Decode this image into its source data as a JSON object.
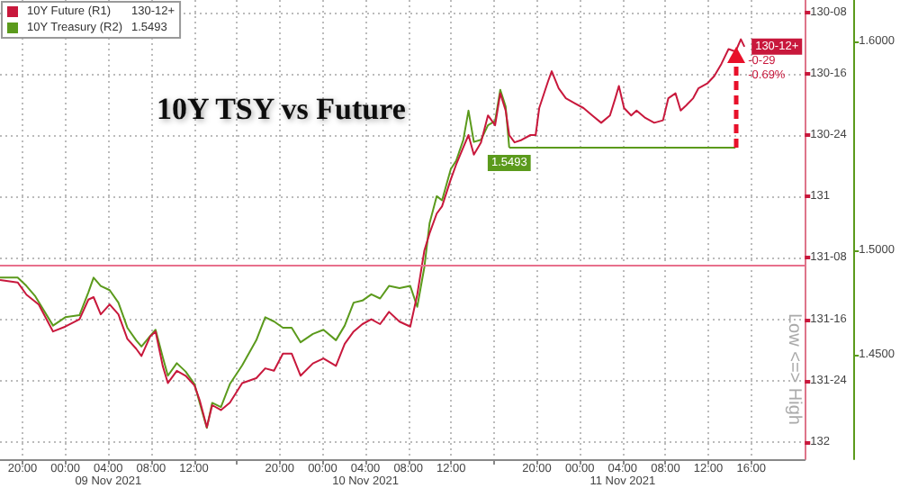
{
  "chart_data": {
    "type": "line",
    "title": "10Y TSY vs Future",
    "xlim": [
      "2021-11-08T17:54",
      "2021-11-11T21:00"
    ],
    "xticks": [
      {
        "value": "2021-11-08T20:00",
        "label": "20:00"
      },
      {
        "value": "2021-11-09T00:00",
        "label": "00:00"
      },
      {
        "value": "2021-11-09T04:00",
        "label": "04:00\n09 Nov 2021"
      },
      {
        "value": "2021-11-09T08:00",
        "label": "08:00"
      },
      {
        "value": "2021-11-09T12:00",
        "label": "12:00"
      },
      {
        "value": "2021-11-09T16:00",
        "label": null
      },
      {
        "value": "2021-11-09T20:00",
        "label": "20:00"
      },
      {
        "value": "2021-11-10T00:00",
        "label": "00:00"
      },
      {
        "value": "2021-11-10T04:00",
        "label": "04:00\n10 Nov 2021"
      },
      {
        "value": "2021-11-10T08:00",
        "label": "08:00"
      },
      {
        "value": "2021-11-10T12:00",
        "label": "12:00"
      },
      {
        "value": "2021-11-10T16:00",
        "label": null
      },
      {
        "value": "2021-11-10T20:00",
        "label": "20:00"
      },
      {
        "value": "2021-11-11T00:00",
        "label": "00:00"
      },
      {
        "value": "2021-11-11T04:00",
        "label": "04:00\n11 Nov 2021"
      },
      {
        "value": "2021-11-11T08:00",
        "label": "08:00"
      },
      {
        "value": "2021-11-11T12:00",
        "label": "12:00"
      },
      {
        "value": "2021-11-11T16:00",
        "label": "16:00"
      }
    ],
    "ylim": [
      132.07,
      130.2
    ],
    "yticks": [
      {
        "value": 130.25,
        "label": "130-08"
      },
      {
        "value": 130.5,
        "label": "130-16"
      },
      {
        "value": 130.75,
        "label": "130-24"
      },
      {
        "value": 131,
        "label": "131"
      },
      {
        "value": 131.25,
        "label": "131-08"
      },
      {
        "value": 131.5,
        "label": "131-16"
      },
      {
        "value": 131.75,
        "label": "131-24"
      },
      {
        "value": 132,
        "label": "132"
      }
    ],
    "y2lim": [
      1.4,
      1.62
    ],
    "y2ticks": [
      {
        "value": 1.45,
        "label": "1.4500"
      },
      {
        "value": 1.5,
        "label": "1.5000"
      },
      {
        "value": 1.6,
        "label": "1.6000"
      }
    ],
    "grid": true,
    "legend": "top left",
    "marker": "none",
    "series": [
      {
        "name": "10Y Future (R1)",
        "color": "#c8183c",
        "x": [
          "2021-11-08T17:54",
          "2021-11-08T19:33",
          "2021-11-08T20:22",
          "2021-11-08T21:31",
          "2021-11-08T22:51",
          "2021-11-09T00:00",
          "2021-11-09T01:19",
          "2021-11-09T02:09",
          "2021-11-09T02:38",
          "2021-11-09T03:18",
          "2021-11-09T04:08",
          "2021-11-09T04:57",
          "2021-11-09T05:47",
          "2021-11-09T06:36",
          "2021-11-09T07:06",
          "2021-11-09T07:55",
          "2021-11-09T08:25",
          "2021-11-09T09:05",
          "2021-11-09T09:34",
          "2021-11-09T10:24",
          "2021-11-09T11:13",
          "2021-11-09T12:03",
          "2021-11-09T12:32",
          "2021-11-09T13:12",
          "2021-11-09T13:42",
          "2021-11-09T14:31",
          "2021-11-09T15:21",
          "2021-11-09T16:30",
          "2021-11-09T17:49",
          "2021-11-09T18:39",
          "2021-11-09T19:28",
          "2021-11-09T20:18",
          "2021-11-09T21:07",
          "2021-11-09T21:57",
          "2021-11-09T23:06",
          "2021-11-10T00:05",
          "2021-11-10T01:15",
          "2021-11-10T02:04",
          "2021-11-10T02:54",
          "2021-11-10T03:43",
          "2021-11-10T04:33",
          "2021-11-10T05:22",
          "2021-11-10T06:12",
          "2021-11-10T07:11",
          "2021-11-10T08:11",
          "2021-11-10T08:50",
          "2021-11-10T09:30",
          "2021-11-10T09:59",
          "2021-11-10T10:39",
          "2021-11-10T11:09",
          "2021-11-10T11:58",
          "2021-11-10T12:28",
          "2021-11-10T13:08",
          "2021-11-10T13:37",
          "2021-11-10T14:07",
          "2021-11-10T14:47",
          "2021-11-10T15:26",
          "2021-11-10T16:06",
          "2021-11-10T16:35",
          "2021-11-10T17:05",
          "2021-11-10T17:25",
          "2021-11-10T17:55",
          "2021-11-10T18:34",
          "2021-11-10T19:24",
          "2021-11-10T19:53",
          "2021-11-10T20:13",
          "2021-11-10T21:03",
          "2021-11-10T21:23",
          "2021-11-10T22:02",
          "2021-11-10T22:42",
          "2021-11-10T23:31",
          "2021-11-11T00:21",
          "2021-11-11T01:10",
          "2021-11-11T02:00",
          "2021-11-11T02:49",
          "2021-11-11T03:19",
          "2021-11-11T03:39",
          "2021-11-11T04:08",
          "2021-11-11T04:48",
          "2021-11-11T05:18",
          "2021-11-11T06:07",
          "2021-11-11T06:57",
          "2021-11-11T07:46",
          "2021-11-11T08:16",
          "2021-11-11T08:56",
          "2021-11-11T09:25",
          "2021-11-11T09:55",
          "2021-11-11T10:35",
          "2021-11-11T11:04",
          "2021-11-11T11:54",
          "2021-11-11T12:33",
          "2021-11-11T13:13",
          "2021-11-11T13:53",
          "2021-11-11T14:32",
          "2021-11-11T15:02",
          "2021-11-11T15:22"
        ],
        "values": [
          131.34,
          131.35,
          131.4,
          131.44,
          131.55,
          131.53,
          131.5,
          131.42,
          131.41,
          131.48,
          131.44,
          131.48,
          131.58,
          131.62,
          131.65,
          131.57,
          131.55,
          131.69,
          131.76,
          131.71,
          131.73,
          131.77,
          131.83,
          131.94,
          131.85,
          131.87,
          131.84,
          131.76,
          131.74,
          131.7,
          131.71,
          131.64,
          131.64,
          131.73,
          131.68,
          131.66,
          131.69,
          131.6,
          131.55,
          131.52,
          131.5,
          131.52,
          131.47,
          131.51,
          131.53,
          131.4,
          131.22,
          131.15,
          131.07,
          131.04,
          130.93,
          130.87,
          130.8,
          130.75,
          130.83,
          130.78,
          130.67,
          130.71,
          130.58,
          130.65,
          130.75,
          130.78,
          130.77,
          130.75,
          130.75,
          130.64,
          130.53,
          130.49,
          130.56,
          130.6,
          130.62,
          130.64,
          130.67,
          130.7,
          130.67,
          130.6,
          130.55,
          130.64,
          130.67,
          130.65,
          130.68,
          130.7,
          130.69,
          130.6,
          130.58,
          130.65,
          130.63,
          130.6,
          130.56,
          130.54,
          130.51,
          130.46,
          130.4,
          130.41,
          130.36,
          130.39
        ],
        "value_labels": [
          null,
          null,
          null,
          null,
          null,
          null,
          null,
          null,
          null,
          null,
          null,
          null,
          null,
          null,
          null,
          null,
          null,
          null,
          null,
          null,
          null,
          null,
          null,
          null,
          null,
          null,
          null,
          null,
          null,
          null,
          null,
          null,
          null,
          null,
          null,
          null,
          null,
          null,
          null,
          null,
          null,
          null,
          null,
          null,
          null,
          null,
          null,
          null,
          null,
          null,
          null,
          null,
          null,
          null,
          null,
          null,
          null,
          null,
          null,
          null,
          null,
          null,
          null,
          null,
          null,
          null,
          null,
          null,
          null,
          null,
          null,
          null,
          null,
          null,
          null,
          null,
          null,
          null,
          null,
          null,
          null,
          null,
          null,
          null,
          null,
          null,
          null,
          null,
          null,
          null,
          null,
          null,
          null,
          null,
          null,
          "130-12+"
        ]
      },
      {
        "name": "10Y Treasury (R2)",
        "axis": "y2",
        "color": "#5b9a1c",
        "x": [
          "2021-11-08T17:54",
          "2021-11-08T19:33",
          "2021-11-08T20:22",
          "2021-11-08T21:12",
          "2021-11-08T22:51",
          "2021-11-09T00:00",
          "2021-11-09T01:19",
          "2021-11-09T02:09",
          "2021-11-09T02:38",
          "2021-11-09T03:18",
          "2021-11-09T04:08",
          "2021-11-09T04:57",
          "2021-11-09T05:47",
          "2021-11-09T06:36",
          "2021-11-09T07:06",
          "2021-11-09T07:55",
          "2021-11-09T08:25",
          "2021-11-09T09:05",
          "2021-11-09T09:34",
          "2021-11-09T10:24",
          "2021-11-09T11:13",
          "2021-11-09T12:03",
          "2021-11-09T12:32",
          "2021-11-09T13:12",
          "2021-11-09T13:42",
          "2021-11-09T14:31",
          "2021-11-09T15:21",
          "2021-11-09T16:30",
          "2021-11-09T17:49",
          "2021-11-09T18:39",
          "2021-11-09T19:28",
          "2021-11-09T20:18",
          "2021-11-09T21:07",
          "2021-11-09T21:57",
          "2021-11-09T23:06",
          "2021-11-10T00:05",
          "2021-11-10T01:15",
          "2021-11-10T02:04",
          "2021-11-10T02:54",
          "2021-11-10T03:43",
          "2021-11-10T04:33",
          "2021-11-10T05:22",
          "2021-11-10T06:12",
          "2021-11-10T07:11",
          "2021-11-10T08:11",
          "2021-11-10T08:50",
          "2021-11-10T09:30",
          "2021-11-10T09:59",
          "2021-11-10T10:39",
          "2021-11-10T11:09",
          "2021-11-10T11:58",
          "2021-11-10T12:28",
          "2021-11-10T13:08",
          "2021-11-10T13:37",
          "2021-11-10T14:07",
          "2021-11-10T14:47",
          "2021-11-10T15:26",
          "2021-11-10T16:06",
          "2021-11-10T16:35",
          "2021-11-10T17:05",
          "2021-11-10T17:25"
        ],
        "values": [
          1.487,
          1.487,
          1.483,
          1.478,
          1.464,
          1.468,
          1.469,
          1.48,
          1.487,
          1.483,
          1.481,
          1.475,
          1.463,
          1.457,
          1.454,
          1.459,
          1.462,
          1.449,
          1.44,
          1.446,
          1.442,
          1.436,
          1.427,
          1.415,
          1.427,
          1.425,
          1.436,
          1.445,
          1.457,
          1.468,
          1.466,
          1.463,
          1.463,
          1.456,
          1.46,
          1.462,
          1.457,
          1.464,
          1.475,
          1.476,
          1.479,
          1.477,
          1.483,
          1.482,
          1.483,
          1.473,
          1.492,
          1.513,
          1.526,
          1.524,
          1.539,
          1.543,
          1.553,
          1.567,
          1.552,
          1.553,
          1.56,
          1.562,
          1.577,
          1.569,
          1.5493
        ],
        "value_labels": [
          null,
          null,
          null,
          null,
          null,
          null,
          null,
          null,
          null,
          null,
          null,
          null,
          null,
          null,
          null,
          null,
          null,
          null,
          null,
          null,
          null,
          null,
          null,
          null,
          null,
          null,
          null,
          null,
          null,
          null,
          null,
          null,
          null,
          null,
          null,
          null,
          null,
          null,
          null,
          null,
          null,
          null,
          null,
          null,
          null,
          null,
          null,
          null,
          null,
          null,
          null,
          null,
          null,
          null,
          null,
          null,
          null,
          null,
          null,
          null,
          "1.5493"
        ]
      },
      {
        "axis": "y2",
        "color": "#5b9a1c",
        "x": [
          "2021-11-10T17:25",
          "2021-11-11T14:32"
        ],
        "values": [
          1.5493,
          1.5493
        ]
      }
    ],
    "ref_lines": [
      {
        "axis": "y",
        "value": 131.28,
        "color": "#e8708c"
      }
    ],
    "annotations": [
      "Low <=> High",
      {
        "text": "-0-29\n-0.69%",
        "x": "2021-11-11T14:32",
        "y": 130.48
      }
    ]
  }
}
